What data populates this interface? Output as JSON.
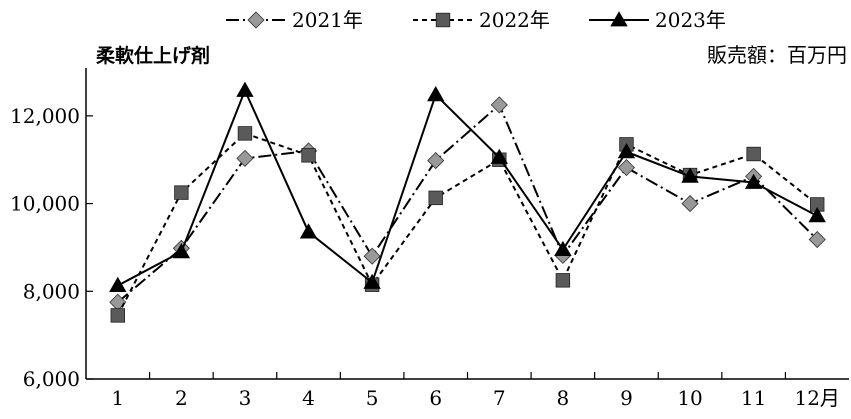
{
  "chart_data": {
    "type": "line",
    "title": "柔軟仕上げ剤",
    "unit_label": "販売額：百万円",
    "xlabel": "",
    "ylabel": "",
    "categories": [
      "1",
      "2",
      "3",
      "4",
      "5",
      "6",
      "7",
      "8",
      "9",
      "10",
      "11",
      "12月"
    ],
    "ylim": [
      6000,
      13000
    ],
    "yticks": [
      6000,
      8000,
      10000,
      12000
    ],
    "ytick_labels": [
      "6,000",
      "8,000",
      "10,000",
      "12,000"
    ],
    "grid": false,
    "legend_position": "top",
    "series": [
      {
        "name": "2021年",
        "marker": "diamond",
        "dash": "dashdot",
        "marker_color": "#999999",
        "values": [
          7750,
          8980,
          11030,
          11200,
          8800,
          10980,
          12250,
          8820,
          10820,
          10000,
          10620,
          9180
        ]
      },
      {
        "name": "2022年",
        "marker": "square",
        "dash": "dashed",
        "marker_color": "#5a5a5a",
        "values": [
          7450,
          10250,
          11600,
          11100,
          8150,
          10130,
          11000,
          8250,
          11350,
          10650,
          11130,
          9980
        ]
      },
      {
        "name": "2023年",
        "marker": "triangle",
        "dash": "solid",
        "marker_color": "#000000",
        "values": [
          8130,
          8900,
          12580,
          9350,
          8200,
          12480,
          11050,
          8950,
          11180,
          10620,
          10480,
          9720
        ]
      }
    ]
  }
}
